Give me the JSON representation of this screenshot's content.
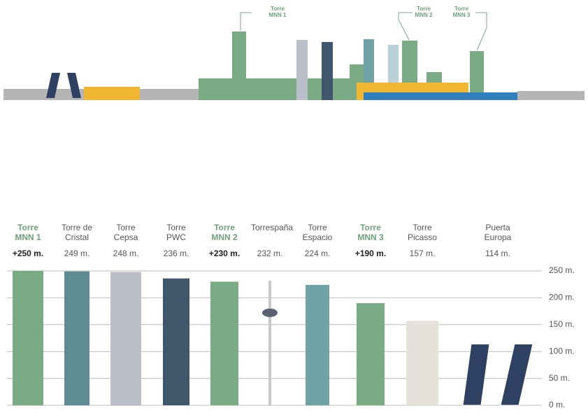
{
  "skyline": {
    "labels": [
      "Torre MNN 1",
      "Torre MNN 2",
      "Torre MNN 3"
    ]
  },
  "chart_data": {
    "type": "bar",
    "categories": [
      "Torre MNN 1",
      "Torre de Cristal",
      "Torre Cepsa",
      "Torre PWC",
      "Torre MNN 2",
      "Torrespaña",
      "Torre Espacio",
      "Torre MNN 3",
      "Torre Picasso",
      "Puerta Europa"
    ],
    "values": [
      250,
      249,
      248,
      236,
      230,
      232,
      224,
      190,
      157,
      114
    ],
    "value_labels": [
      "+250 m.",
      "249 m.",
      "248 m.",
      "236 m.",
      "+230 m.",
      "232 m.",
      "224 m.",
      "+190 m.",
      "157 m.",
      "114 m."
    ],
    "highlighted": [
      true,
      false,
      false,
      false,
      true,
      false,
      false,
      true,
      false,
      false
    ],
    "colors": [
      "#7aab85",
      "#5f8c92",
      "#b9bec8",
      "#3f566b",
      "#7aab85",
      "#d8d8d8",
      "#6fa3a5",
      "#7aab85",
      "#e4e2da",
      "#2f4163"
    ],
    "ylim": [
      0,
      250
    ],
    "yticks": [
      {
        "value": 250,
        "label": "250 m."
      },
      {
        "value": 200,
        "label": "200 m."
      },
      {
        "value": 150,
        "label": "150 m."
      },
      {
        "value": 100,
        "label": "100 m."
      },
      {
        "value": 50,
        "label": "50 m."
      },
      {
        "value": 0,
        "label": "0 m."
      }
    ],
    "grid": true
  }
}
